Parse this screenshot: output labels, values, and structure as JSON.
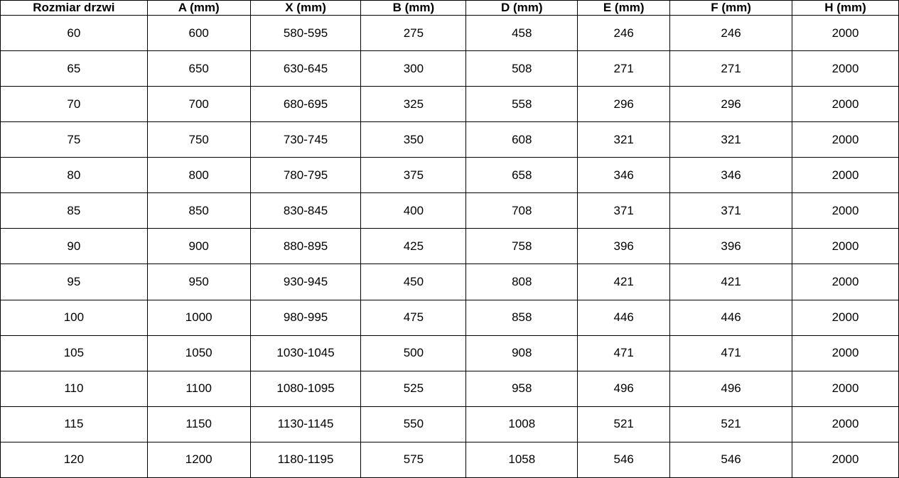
{
  "colors": {
    "border": "#000000",
    "text": "#000000",
    "background": "#ffffff"
  },
  "chart_data": {
    "type": "table",
    "title": "",
    "columns": [
      "Rozmiar drzwi",
      "A (mm)",
      "X (mm)",
      "B (mm)",
      "D (mm)",
      "E (mm)",
      "F (mm)",
      "H (mm)"
    ],
    "rows": [
      [
        "60",
        "600",
        "580-595",
        "275",
        "458",
        "246",
        "246",
        "2000"
      ],
      [
        "65",
        "650",
        "630-645",
        "300",
        "508",
        "271",
        "271",
        "2000"
      ],
      [
        "70",
        "700",
        "680-695",
        "325",
        "558",
        "296",
        "296",
        "2000"
      ],
      [
        "75",
        "750",
        "730-745",
        "350",
        "608",
        "321",
        "321",
        "2000"
      ],
      [
        "80",
        "800",
        "780-795",
        "375",
        "658",
        "346",
        "346",
        "2000"
      ],
      [
        "85",
        "850",
        "830-845",
        "400",
        "708",
        "371",
        "371",
        "2000"
      ],
      [
        "90",
        "900",
        "880-895",
        "425",
        "758",
        "396",
        "396",
        "2000"
      ],
      [
        "95",
        "950",
        "930-945",
        "450",
        "808",
        "421",
        "421",
        "2000"
      ],
      [
        "100",
        "1000",
        "980-995",
        "475",
        "858",
        "446",
        "446",
        "2000"
      ],
      [
        "105",
        "1050",
        "1030-1045",
        "500",
        "908",
        "471",
        "471",
        "2000"
      ],
      [
        "110",
        "1100",
        "1080-1095",
        "525",
        "958",
        "496",
        "496",
        "2000"
      ],
      [
        "115",
        "1150",
        "1130-1145",
        "550",
        "1008",
        "521",
        "521",
        "2000"
      ],
      [
        "120",
        "1200",
        "1180-1195",
        "575",
        "1058",
        "546",
        "546",
        "2000"
      ]
    ]
  }
}
